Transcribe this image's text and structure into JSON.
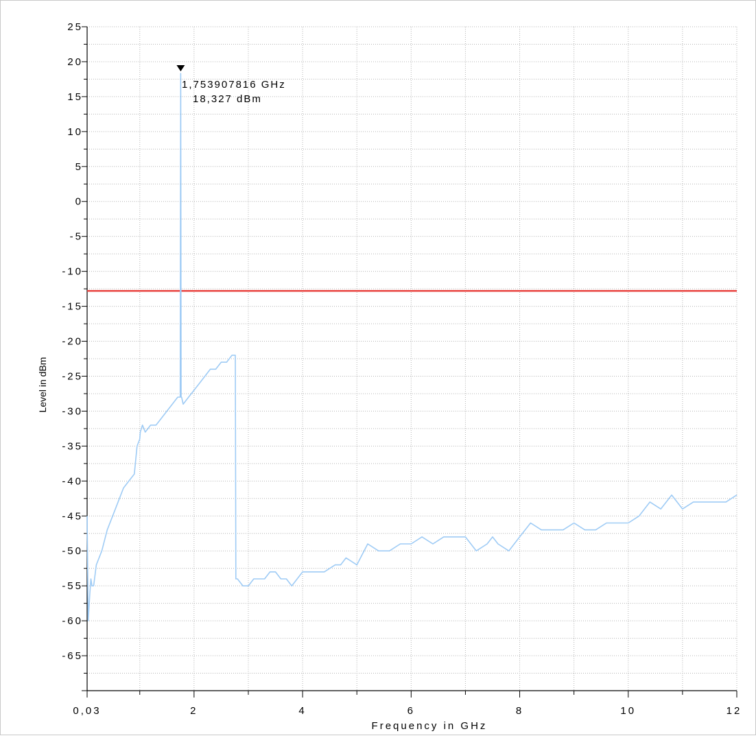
{
  "chart_data": {
    "type": "line",
    "xlabel": "Frequency in GHz",
    "ylabel": "Level in dBm",
    "xlim": [
      0.03,
      12
    ],
    "ylim": [
      -70,
      25
    ],
    "x_tick_values": [
      0.03,
      2,
      4,
      6,
      8,
      10,
      12
    ],
    "x_tick_labels": [
      "0,03",
      "2",
      "4",
      "6",
      "8",
      "10",
      "12"
    ],
    "y_tick_values": [
      25,
      20,
      15,
      10,
      5,
      0,
      -5,
      -10,
      -15,
      -20,
      -25,
      -30,
      -35,
      -40,
      -45,
      -50,
      -55,
      -60,
      -65
    ],
    "y_tick_labels": [
      "25",
      "20",
      "15",
      "10",
      "5",
      "0",
      "-5",
      "-10",
      "-15",
      "-20",
      "-25",
      "-30",
      "-35",
      "-40",
      "-45",
      "-50",
      "-55",
      "-60",
      "-65"
    ],
    "grid": true,
    "limit_line": {
      "value": -12.8,
      "color": "#e8403c"
    },
    "trace_color": "#9ecbf5",
    "marker": {
      "x": 1.753907816,
      "y": 18.327,
      "freq_text": "1,753907816 GHz",
      "level_text": "18,327 dBm"
    },
    "series": [
      {
        "x": [
          0.03,
          0.05,
          0.08,
          0.1,
          0.12,
          0.15,
          0.2,
          0.3,
          0.4,
          0.5,
          0.6,
          0.7,
          0.8,
          0.9,
          0.95,
          1.0,
          1.01,
          1.05,
          1.1,
          1.2,
          1.3,
          1.4,
          1.5,
          1.6,
          1.7,
          1.74,
          1.745,
          1.7539,
          1.762,
          1.77,
          1.8,
          1.9,
          2.0,
          2.1,
          2.2,
          2.3,
          2.4,
          2.5,
          2.6,
          2.7,
          2.76,
          2.77,
          2.8,
          2.9,
          3.0,
          3.1,
          3.2,
          3.3,
          3.4,
          3.5,
          3.6,
          3.7,
          3.8,
          3.9,
          4.0,
          4.2,
          4.4,
          4.6,
          4.7,
          4.8,
          5.0,
          5.2,
          5.4,
          5.6,
          5.8,
          6.0,
          6.2,
          6.4,
          6.6,
          6.8,
          7.0,
          7.2,
          7.4,
          7.5,
          7.6,
          7.8,
          8.0,
          8.2,
          8.4,
          8.6,
          8.8,
          9.0,
          9.2,
          9.4,
          9.6,
          9.8,
          10.0,
          10.2,
          10.4,
          10.6,
          10.8,
          11.0,
          11.2,
          11.4,
          11.6,
          11.8,
          12.0
        ],
        "y": [
          -45,
          -60,
          -56,
          -54,
          -55,
          -55,
          -52,
          -50,
          -47,
          -45,
          -43,
          -41,
          -40,
          -39,
          -35,
          -34,
          -33,
          -32,
          -33,
          -32,
          -32,
          -31,
          -30,
          -29,
          -28,
          -28,
          -28,
          18.327,
          -28,
          -28,
          -29,
          -28,
          -27,
          -26,
          -25,
          -24,
          -24,
          -23,
          -23,
          -22,
          -22,
          -54,
          -54,
          -55,
          -55,
          -54,
          -54,
          -54,
          -53,
          -53,
          -54,
          -54,
          -55,
          -54,
          -53,
          -53,
          -53,
          -52,
          -52,
          -51,
          -52,
          -49,
          -50,
          -50,
          -49,
          -49,
          -48,
          -49,
          -48,
          -48,
          -48,
          -50,
          -49,
          -48,
          -49,
          -50,
          -48,
          -46,
          -47,
          -47,
          -47,
          -46,
          -47,
          -47,
          -46,
          -46,
          -46,
          -45,
          -43,
          -44,
          -42,
          -44,
          -43,
          -43,
          -43,
          -43,
          -42
        ]
      }
    ]
  }
}
